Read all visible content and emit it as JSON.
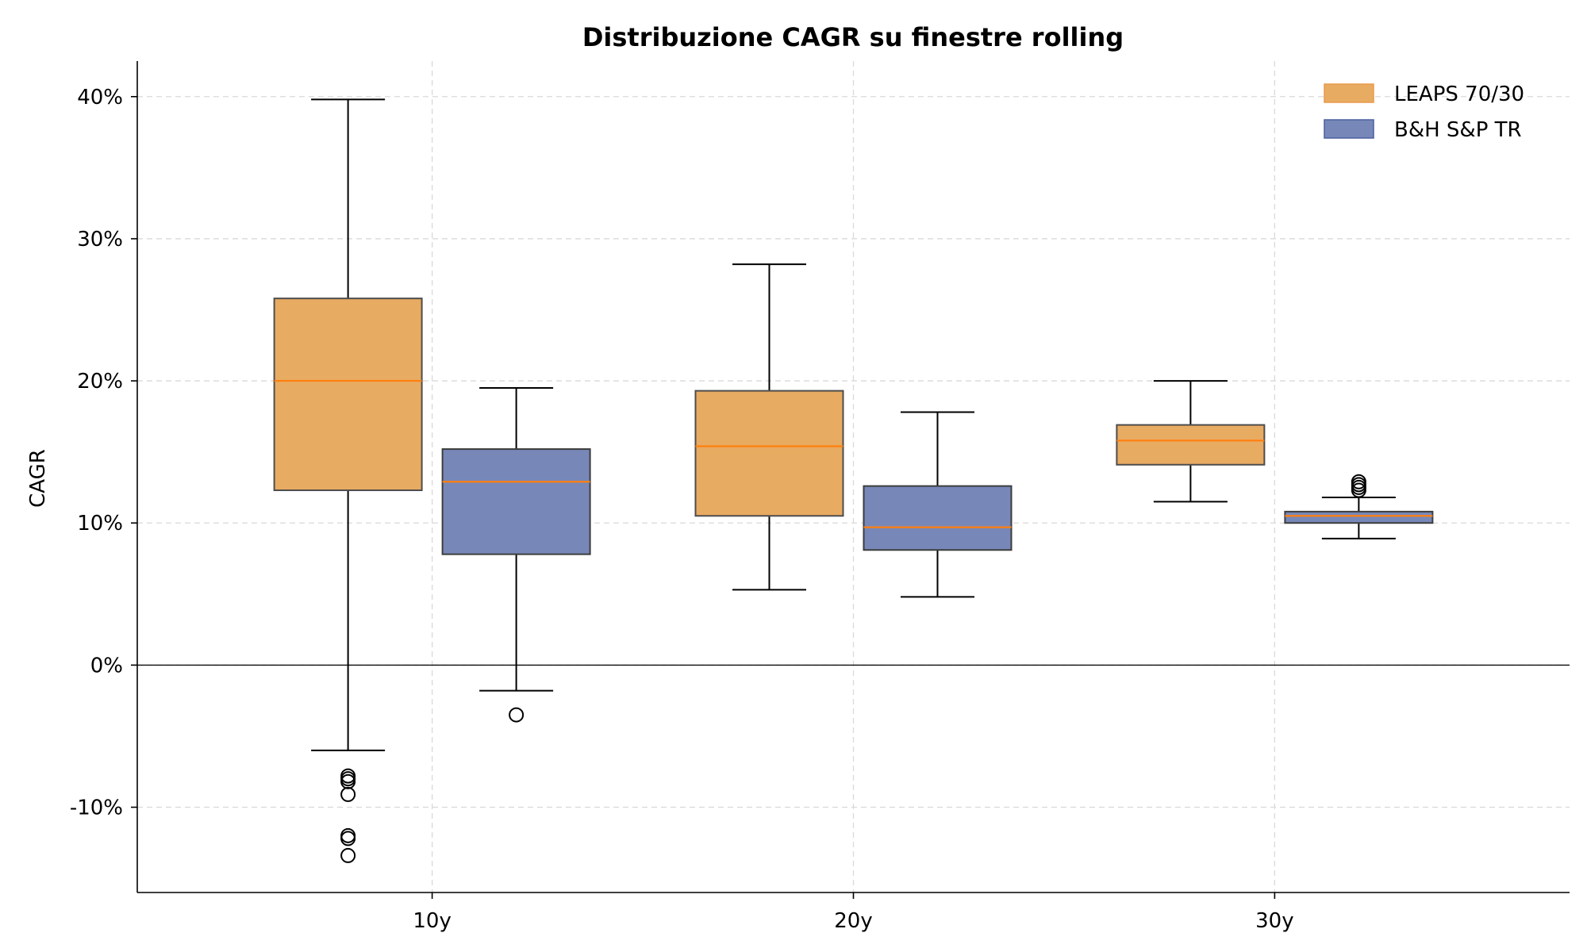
{
  "chart_data": {
    "type": "boxplot",
    "title": "Distribuzione CAGR su finestre rolling",
    "xlabel": "",
    "ylabel": "CAGR",
    "categories": [
      "10y",
      "20y",
      "30y"
    ],
    "ylim": [
      -16,
      42.5
    ],
    "yticks": [
      -10,
      0,
      10,
      20,
      30,
      40
    ],
    "ytick_labels": [
      "-10%",
      "0%",
      "10%",
      "20%",
      "30%",
      "40%"
    ],
    "grid": true,
    "zero_line": true,
    "legend_position": "top-right",
    "series": [
      {
        "name": "LEAPS 70/30",
        "color": "#e8ab62",
        "edge_color": "#4d4d4d",
        "median_color": "#ff7f0e",
        "boxes": [
          {
            "category": "10y",
            "whisker_low": -6.0,
            "q1": 12.3,
            "median": 20.0,
            "q3": 25.8,
            "whisker_high": 39.8,
            "outliers": [
              -7.8,
              -8.0,
              -8.2,
              -9.1,
              -12.0,
              -12.2,
              -13.4
            ]
          },
          {
            "category": "20y",
            "whisker_low": 5.3,
            "q1": 10.5,
            "median": 15.4,
            "q3": 19.3,
            "whisker_high": 28.2,
            "outliers": []
          },
          {
            "category": "30y",
            "whisker_low": 11.5,
            "q1": 14.1,
            "median": 15.8,
            "q3": 16.9,
            "whisker_high": 20.0,
            "outliers": []
          }
        ]
      },
      {
        "name": "B&H S&P TR",
        "color": "#7788b8",
        "edge_color": "#3d3d3d",
        "median_color": "#ff7f0e",
        "boxes": [
          {
            "category": "10y",
            "whisker_low": -1.8,
            "q1": 7.8,
            "median": 12.9,
            "q3": 15.2,
            "whisker_high": 19.5,
            "outliers": [
              -3.5
            ]
          },
          {
            "category": "20y",
            "whisker_low": 4.8,
            "q1": 8.1,
            "median": 9.7,
            "q3": 12.6,
            "whisker_high": 17.8,
            "outliers": []
          },
          {
            "category": "30y",
            "whisker_low": 8.9,
            "q1": 10.0,
            "median": 10.5,
            "q3": 10.8,
            "whisker_high": 11.8,
            "outliers": [
              12.3,
              12.5,
              12.7,
              12.9
            ]
          }
        ]
      }
    ]
  }
}
